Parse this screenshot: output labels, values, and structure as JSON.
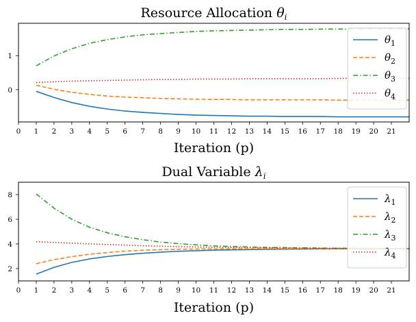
{
  "chart_data": [
    {
      "type": "line",
      "title": "Resource Allocation θi",
      "title_main": "Resource Allocation ",
      "title_symbol": "θ",
      "title_sub": "i",
      "xlabel": "Iteration (p)",
      "ylabel": "",
      "xlim": [
        0,
        22
      ],
      "ylim": [
        -0.95,
        1.95
      ],
      "x_ticks": [
        0,
        1,
        2,
        3,
        4,
        5,
        6,
        7,
        8,
        9,
        10,
        11,
        12,
        13,
        14,
        15,
        16,
        17,
        18,
        19,
        20,
        21
      ],
      "y_ticks": [
        0,
        1
      ],
      "legend_position": "top-right",
      "x": [
        1,
        2,
        3,
        4,
        5,
        6,
        7,
        8,
        9,
        10,
        11,
        12,
        13,
        14,
        15,
        16,
        17,
        18,
        19,
        20,
        21,
        22
      ],
      "series": [
        {
          "name": "θ1",
          "symbol": "θ",
          "sub": "1",
          "color": "#1f77b4",
          "dash": "solid",
          "values": [
            -0.05,
            -0.23,
            -0.38,
            -0.49,
            -0.57,
            -0.63,
            -0.67,
            -0.7,
            -0.73,
            -0.75,
            -0.76,
            -0.77,
            -0.78,
            -0.78,
            -0.79,
            -0.79,
            -0.79,
            -0.8,
            -0.8,
            -0.8,
            -0.8,
            -0.8
          ]
        },
        {
          "name": "θ2",
          "symbol": "θ",
          "sub": "2",
          "color": "#ff7f0e",
          "dash": "dashed",
          "values": [
            0.13,
            0.01,
            -0.08,
            -0.14,
            -0.19,
            -0.22,
            -0.24,
            -0.26,
            -0.27,
            -0.28,
            -0.29,
            -0.29,
            -0.3,
            -0.3,
            -0.3,
            -0.3,
            -0.3,
            -0.31,
            -0.31,
            -0.31,
            -0.31,
            -0.31
          ]
        },
        {
          "name": "θ3",
          "symbol": "θ",
          "sub": "3",
          "color": "#2ca02c",
          "dash": "dashdot",
          "values": [
            0.7,
            0.99,
            1.2,
            1.36,
            1.47,
            1.55,
            1.61,
            1.65,
            1.68,
            1.71,
            1.73,
            1.74,
            1.75,
            1.76,
            1.77,
            1.77,
            1.78,
            1.78,
            1.78,
            1.79,
            1.79,
            1.79
          ]
        },
        {
          "name": "θ4",
          "symbol": "θ",
          "sub": "4",
          "color": "#d62728",
          "dash": "dotted",
          "values": [
            0.21,
            0.23,
            0.25,
            0.26,
            0.27,
            0.28,
            0.29,
            0.3,
            0.3,
            0.31,
            0.31,
            0.31,
            0.32,
            0.32,
            0.32,
            0.32,
            0.32,
            0.33,
            0.33,
            0.33,
            0.33,
            0.33
          ]
        }
      ]
    },
    {
      "type": "line",
      "title": "Dual Variable λi",
      "title_main": "Dual Variable ",
      "title_symbol": "λ",
      "title_sub": "i",
      "xlabel": "Iteration (p)",
      "ylabel": "",
      "xlim": [
        0,
        22
      ],
      "ylim": [
        1.0,
        9.0
      ],
      "x_ticks": [
        0,
        1,
        2,
        3,
        4,
        5,
        6,
        7,
        8,
        9,
        10,
        11,
        12,
        13,
        14,
        15,
        16,
        17,
        18,
        19,
        20,
        21
      ],
      "y_ticks": [
        2,
        4,
        6,
        8
      ],
      "legend_position": "top-right",
      "x": [
        1,
        2,
        3,
        4,
        5,
        6,
        7,
        8,
        9,
        10,
        11,
        12,
        13,
        14,
        15,
        16,
        17,
        18,
        19,
        20,
        21,
        22
      ],
      "series": [
        {
          "name": "λ1",
          "symbol": "λ",
          "sub": "1",
          "color": "#1f77b4",
          "dash": "solid",
          "values": [
            1.55,
            2.1,
            2.5,
            2.78,
            2.98,
            3.13,
            3.24,
            3.33,
            3.4,
            3.45,
            3.49,
            3.52,
            3.54,
            3.56,
            3.57,
            3.58,
            3.59,
            3.6,
            3.6,
            3.6,
            3.61,
            3.61
          ]
        },
        {
          "name": "λ2",
          "symbol": "λ",
          "sub": "2",
          "color": "#ff7f0e",
          "dash": "dashed",
          "values": [
            2.4,
            2.72,
            2.97,
            3.16,
            3.3,
            3.41,
            3.48,
            3.53,
            3.56,
            3.58,
            3.59,
            3.6,
            3.6,
            3.61,
            3.61,
            3.61,
            3.61,
            3.61,
            3.61,
            3.61,
            3.61,
            3.61
          ]
        },
        {
          "name": "λ3",
          "symbol": "λ",
          "sub": "3",
          "color": "#2ca02c",
          "dash": "dashdot",
          "values": [
            8.05,
            6.9,
            6.0,
            5.35,
            4.9,
            4.58,
            4.34,
            4.15,
            4.02,
            3.92,
            3.84,
            3.79,
            3.75,
            3.72,
            3.7,
            3.68,
            3.66,
            3.65,
            3.64,
            3.63,
            3.62,
            3.62
          ]
        },
        {
          "name": "λ4",
          "symbol": "λ",
          "sub": "4",
          "color": "#d62728",
          "dash": "dotted",
          "values": [
            4.18,
            4.12,
            4.06,
            4.0,
            3.95,
            3.9,
            3.85,
            3.81,
            3.78,
            3.75,
            3.73,
            3.71,
            3.7,
            3.68,
            3.67,
            3.66,
            3.65,
            3.65,
            3.64,
            3.63,
            3.63,
            3.63
          ]
        }
      ]
    }
  ]
}
